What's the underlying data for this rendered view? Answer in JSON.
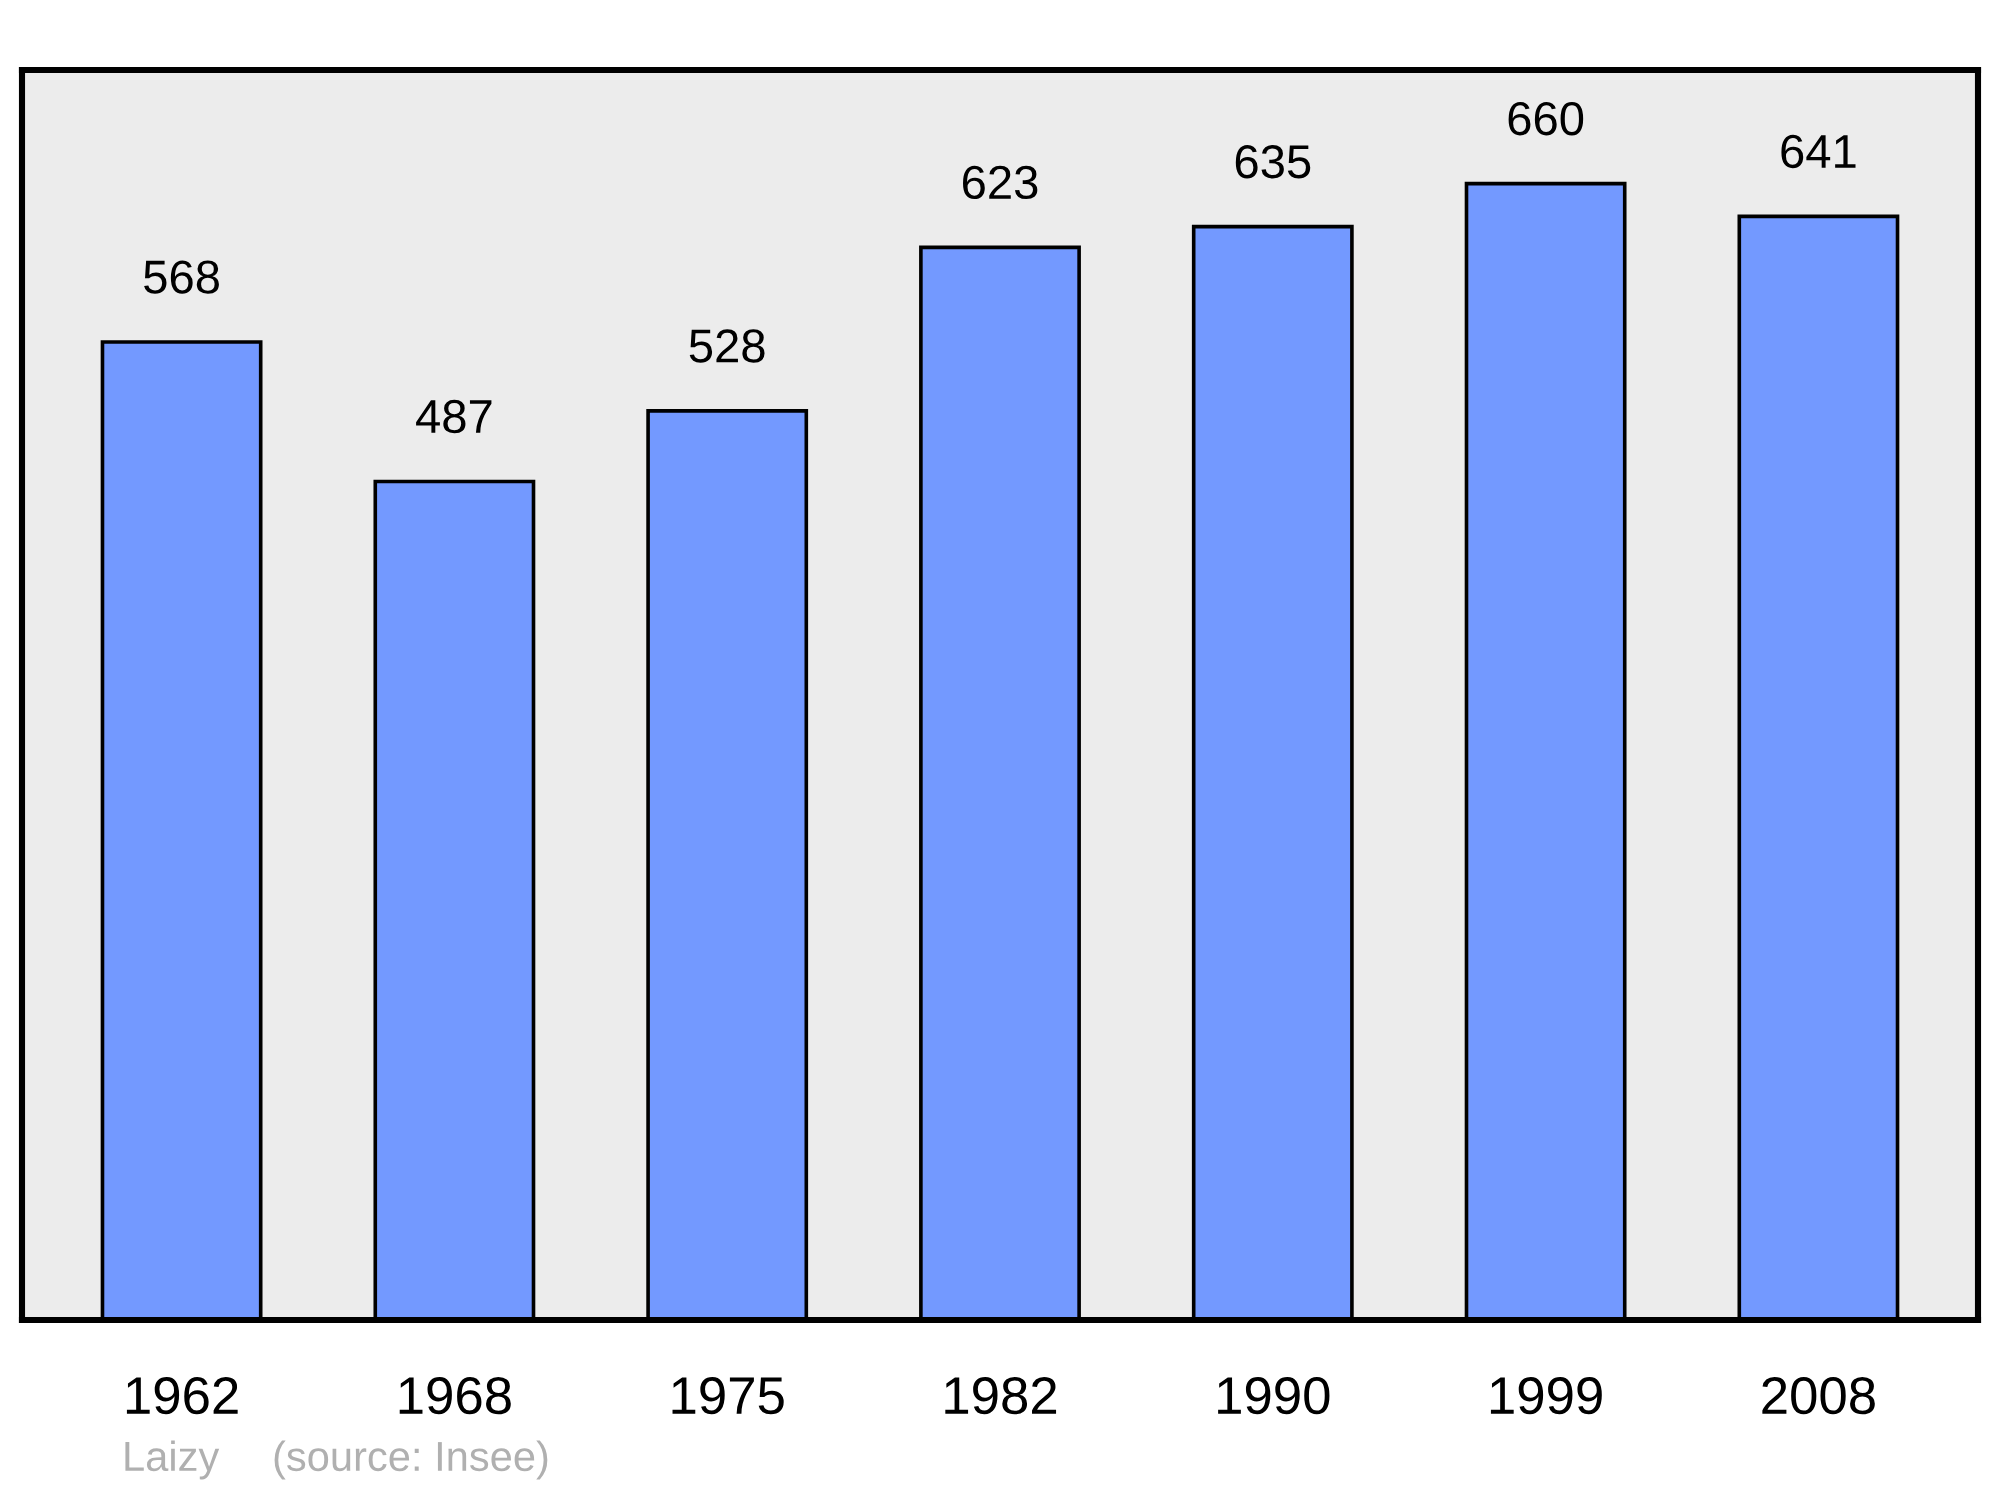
{
  "chart_data": {
    "type": "bar",
    "categories": [
      "1962",
      "1968",
      "1975",
      "1982",
      "1990",
      "1999",
      "2008"
    ],
    "values": [
      568,
      487,
      528,
      623,
      635,
      660,
      641
    ],
    "color": "#7399ff",
    "data_labels": true,
    "tick_labels": "x",
    "grid": false,
    "annotations": [
      "Laizy",
      "(source: Insee)"
    ]
  }
}
